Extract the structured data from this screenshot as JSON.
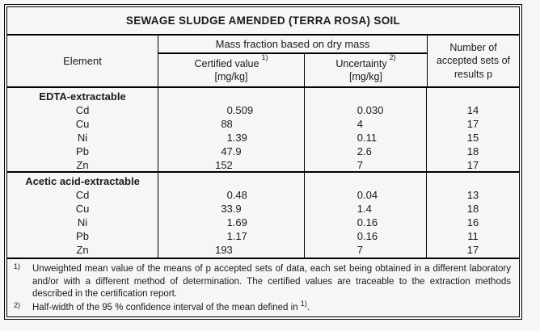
{
  "table": {
    "title": "SEWAGE SLUDGE AMENDED (TERRA ROSA) SOIL",
    "header": {
      "element": "Element",
      "mass_fraction": "Mass fraction based on dry mass",
      "certified": {
        "label": "Certified value",
        "sup": "1)",
        "unit": "[mg/kg]"
      },
      "uncertainty": {
        "label": "Uncertainty",
        "sup": "2)",
        "unit": "[mg/kg]"
      },
      "accepted": "Number of accepted sets of results p"
    },
    "sections": [
      {
        "name": "EDTA-extractable",
        "rows": [
          {
            "element": "Cd",
            "certified": "0.509",
            "uncertainty": "0.030",
            "p": "14"
          },
          {
            "element": "Cu",
            "certified": "88",
            "uncertainty": "4",
            "p": "17"
          },
          {
            "element": "Ni",
            "certified": "1.39",
            "uncertainty": "0.11",
            "p": "15"
          },
          {
            "element": "Pb",
            "certified": "47.9",
            "uncertainty": "2.6",
            "p": "18"
          },
          {
            "element": "Zn",
            "certified": "152",
            "uncertainty": "7",
            "p": "17"
          }
        ]
      },
      {
        "name": "Acetic acid-extractable",
        "rows": [
          {
            "element": "Cd",
            "certified": "0.48",
            "uncertainty": "0.04",
            "p": "13"
          },
          {
            "element": "Cu",
            "certified": "33.9",
            "uncertainty": "1.4",
            "p": "18"
          },
          {
            "element": "Ni",
            "certified": "1.69",
            "uncertainty": "0.16",
            "p": "16"
          },
          {
            "element": "Pb",
            "certified": "1.17",
            "uncertainty": "0.16",
            "p": "11"
          },
          {
            "element": "Zn",
            "certified": "193",
            "uncertainty": "7",
            "p": "17"
          }
        ]
      }
    ],
    "footnotes": [
      {
        "marker": "1)",
        "text": "Unweighted mean value of the means of p accepted sets of data, each set being obtained in a different laboratory and/or with a different method of determination. The certified values are traceable to the extraction methods described in the certification report.",
        "sup_tail": "",
        "tail": ""
      },
      {
        "marker": "2)",
        "text": "Half-width of the 95 % confidence interval of the mean defined in ",
        "sup_tail": "1)",
        "tail": "."
      }
    ],
    "colors": {
      "border": "#000000",
      "background": "#f6f6f4",
      "text": "#1a1a1a"
    }
  }
}
